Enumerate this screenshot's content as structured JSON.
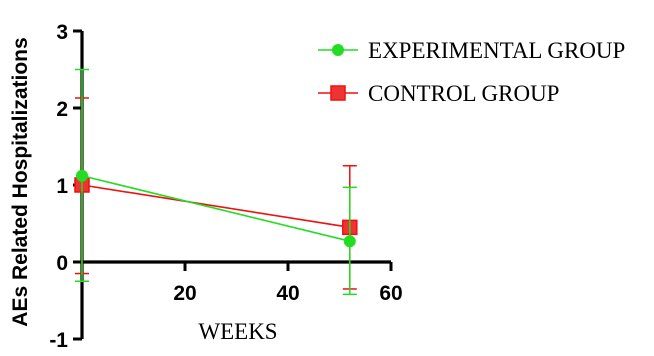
{
  "chart_data": {
    "type": "line",
    "title": "",
    "xlabel": "WEEKS",
    "ylabel": "AEs Related Hospitalizations",
    "xlim": [
      0,
      60
    ],
    "ylim": [
      -1,
      3
    ],
    "x_ticks": [
      "20",
      "40",
      "60"
    ],
    "y_ticks": [
      "-1",
      "0",
      "1",
      "2",
      "3"
    ],
    "legend_position": "top-right",
    "series": [
      {
        "name": "EXPERIMENTAL GROUP",
        "color": "#22dd22",
        "marker": "circle",
        "x": [
          0,
          52
        ],
        "y": [
          1.12,
          0.27
        ],
        "error_upper": [
          2.5,
          0.97
        ],
        "error_lower": [
          -0.25,
          -0.42
        ]
      },
      {
        "name": "CONTROL GROUP",
        "color": "#ee1111",
        "marker": "square",
        "x": [
          0,
          52
        ],
        "y": [
          1.0,
          0.45
        ],
        "error_upper": [
          2.13,
          1.25
        ],
        "error_lower": [
          -0.15,
          -0.35
        ]
      }
    ]
  }
}
